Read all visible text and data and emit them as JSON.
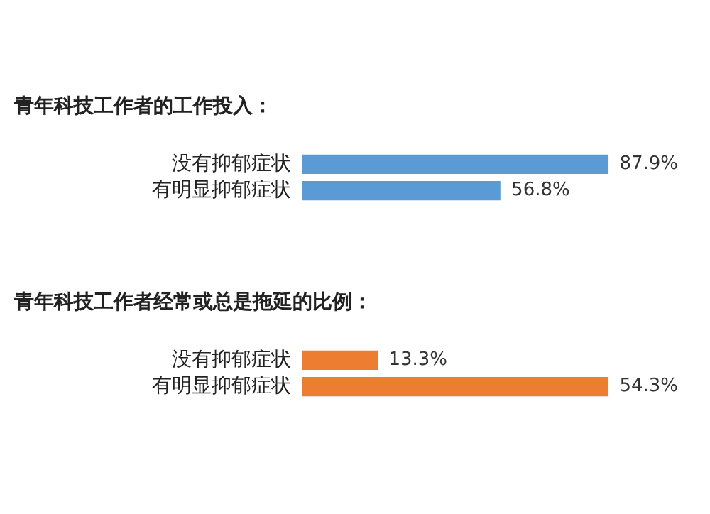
{
  "chart_data": [
    {
      "type": "bar",
      "orientation": "horizontal",
      "title": "青年科技工作者的工作投入：",
      "categories": [
        "没有抑郁症状",
        "有明显抑郁症状"
      ],
      "values": [
        87.9,
        56.8
      ],
      "value_labels": [
        "87.9%",
        "56.8%"
      ],
      "color": "#5b9bd5",
      "grid": false,
      "legend": false
    },
    {
      "type": "bar",
      "orientation": "horizontal",
      "title": "青年科技工作者经常或总是拖延的比例：",
      "categories": [
        "没有抑郁症状",
        "有明显抑郁症状"
      ],
      "values": [
        13.3,
        54.3
      ],
      "value_labels": [
        "13.3%",
        "54.3%"
      ],
      "color": "#ed7d31",
      "grid": false,
      "legend": false
    }
  ]
}
